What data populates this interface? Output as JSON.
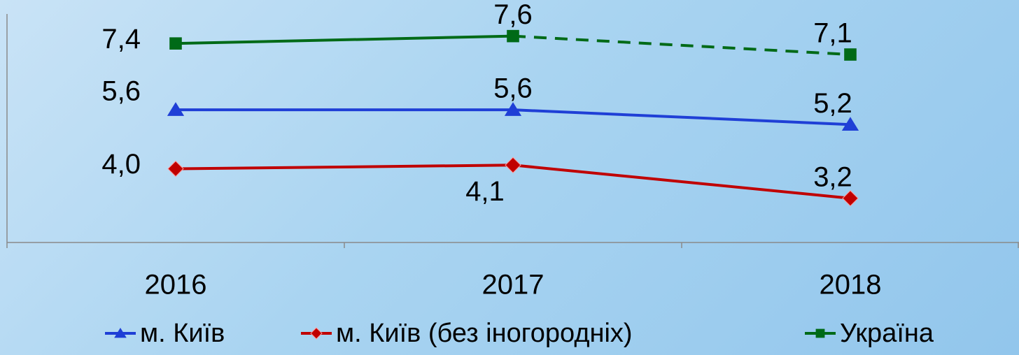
{
  "chart_data": {
    "type": "line",
    "categories": [
      "2016",
      "2017",
      "2018"
    ],
    "ylim": [
      2,
      8.2
    ],
    "series": [
      {
        "name": "м. Київ",
        "color": "#1f3fd6",
        "marker": "triangle",
        "values": [
          5.6,
          5.6,
          5.2
        ],
        "value_labels": [
          "5,6",
          "5,6",
          "5,2"
        ]
      },
      {
        "name": "м. Київ (без іногородніх)",
        "color": "#c00000",
        "marker": "diamond",
        "values": [
          4.0,
          4.1,
          3.2
        ],
        "value_labels": [
          "4,0",
          "4,1",
          "3,2"
        ]
      },
      {
        "name": "Україна",
        "color": "#006a17",
        "marker": "square",
        "values": [
          7.4,
          7.6,
          7.1
        ],
        "value_labels": [
          "7,4",
          "7,6",
          "7,1"
        ],
        "dashed_segments": [
          1
        ]
      }
    ],
    "legend": "bottom"
  }
}
